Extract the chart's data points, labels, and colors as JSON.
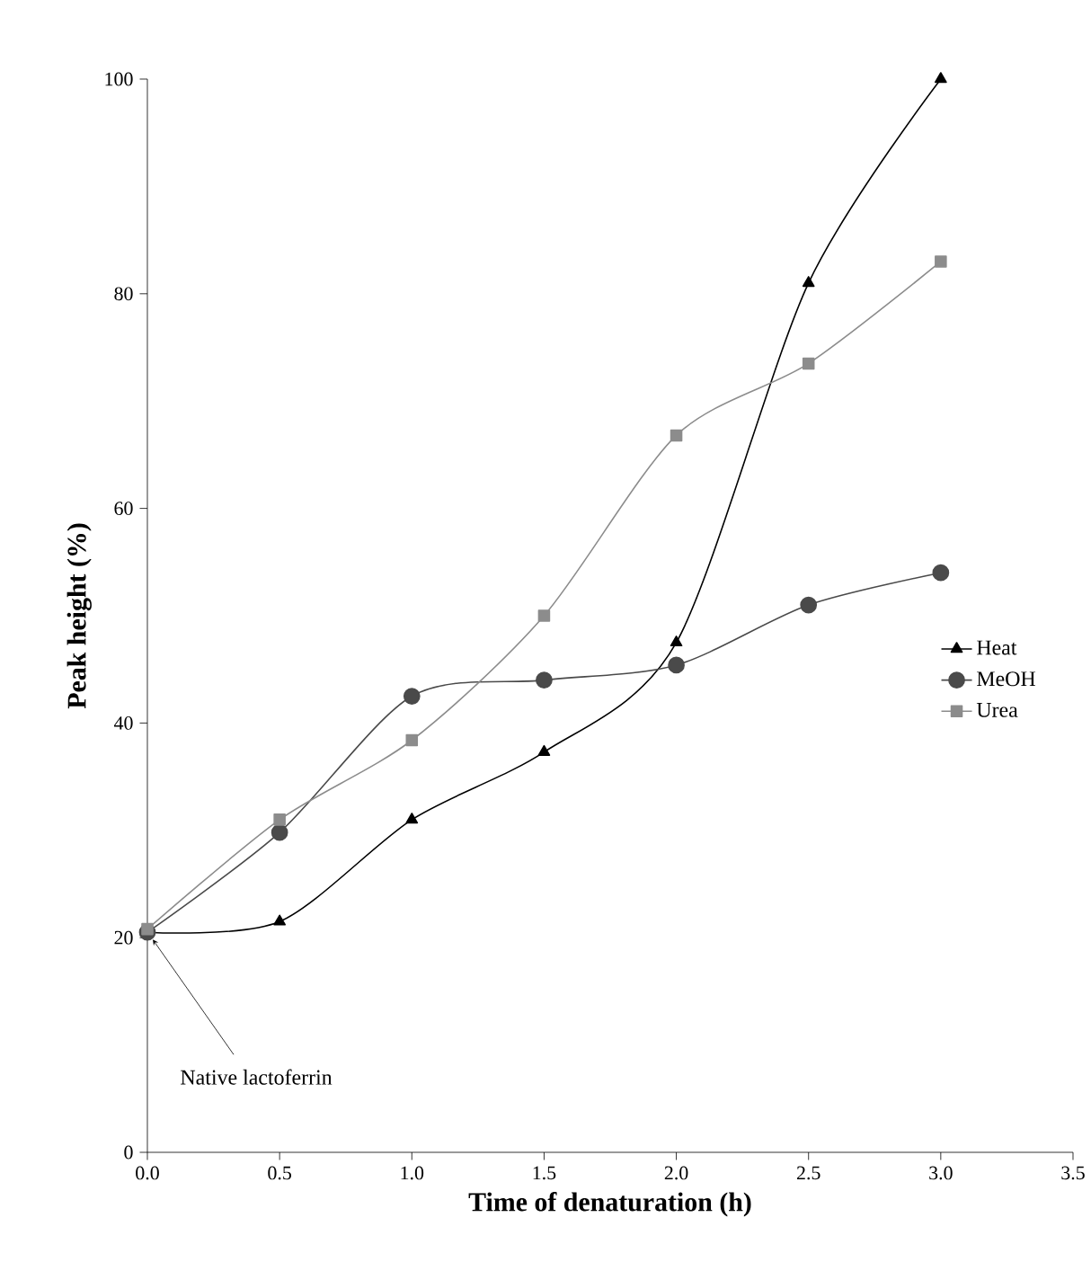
{
  "chart_data": {
    "type": "line",
    "xlabel": "Time of denaturation (h)",
    "ylabel": "Peak height (%)",
    "xlim": [
      0,
      3.5
    ],
    "ylim": [
      0,
      100
    ],
    "xticks": [
      {
        "value": 0,
        "label": "0.0"
      },
      {
        "value": 0.5,
        "label": "0.5"
      },
      {
        "value": 1,
        "label": "1.0"
      },
      {
        "value": 1.5,
        "label": "1.5"
      },
      {
        "value": 2,
        "label": "2.0"
      },
      {
        "value": 2.5,
        "label": "2.5"
      },
      {
        "value": 3,
        "label": "3.0"
      },
      {
        "value": 3.5,
        "label": "3.5"
      }
    ],
    "yticks": [
      0,
      20,
      40,
      60,
      80,
      100
    ],
    "x": [
      0,
      0.5,
      1,
      1.5,
      2,
      2.5,
      3
    ],
    "series": [
      {
        "name": "Heat",
        "color": "#000000",
        "marker": "triangle",
        "values": [
          20.5,
          21.5,
          31,
          37.3,
          47.5,
          81,
          100
        ]
      },
      {
        "name": "MeOH",
        "color": "#4a4a4a",
        "marker": "circle",
        "values": [
          20.5,
          29.8,
          42.5,
          44,
          45.4,
          51,
          54
        ]
      },
      {
        "name": "Urea",
        "color": "#8c8c8c",
        "marker": "square",
        "values": [
          20.8,
          31,
          38.4,
          50,
          66.8,
          73.5,
          83
        ]
      }
    ],
    "legend": "right",
    "grid": false,
    "annotations": [
      {
        "text": "Native lactoferrin",
        "x": 0,
        "y": 20.5
      }
    ]
  }
}
